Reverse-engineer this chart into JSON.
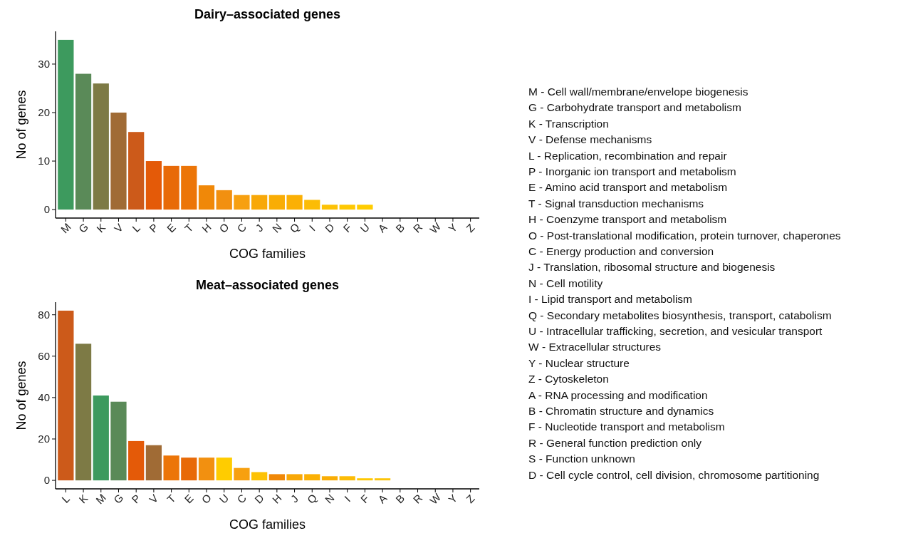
{
  "chart_data": [
    {
      "type": "bar",
      "title": "Dairy–associated genes",
      "xlabel": "COG families",
      "ylabel": "No of genes",
      "categories": [
        "M",
        "G",
        "K",
        "V",
        "L",
        "P",
        "E",
        "T",
        "H",
        "O",
        "C",
        "J",
        "N",
        "Q",
        "I",
        "D",
        "F",
        "U",
        "A",
        "B",
        "R",
        "W",
        "Y",
        "Z"
      ],
      "values": [
        35,
        28,
        26,
        20,
        16,
        10,
        9,
        9,
        5,
        4,
        3,
        3,
        3,
        3,
        2,
        1,
        1,
        1,
        0,
        0,
        0,
        0,
        0,
        0
      ],
      "colors": [
        "#3d9a5e",
        "#5a8a58",
        "#7d7a45",
        "#a06b35",
        "#cc5a1a",
        "#e45a08",
        "#e86a08",
        "#ec7508",
        "#f08808",
        "#f29010",
        "#f7a010",
        "#f8a808",
        "#f9ad05",
        "#fbb005",
        "#fcbc06",
        "#fdc205",
        "#fec803",
        "#ffcc00",
        "#fff5d0",
        "#fff5d0",
        "#fff5d0",
        "#fff5d0",
        "#fff5d0",
        "#fff5d0"
      ],
      "ylim": [
        -1.75,
        36.75
      ],
      "yticks": [
        0,
        10,
        20,
        30
      ]
    },
    {
      "type": "bar",
      "title": "Meat–associated genes",
      "xlabel": "COG families",
      "ylabel": "No of genes",
      "categories": [
        "L",
        "K",
        "M",
        "G",
        "P",
        "V",
        "T",
        "E",
        "O",
        "U",
        "C",
        "D",
        "H",
        "J",
        "Q",
        "N",
        "I",
        "F",
        "A",
        "B",
        "R",
        "W",
        "Y",
        "Z"
      ],
      "values": [
        82,
        66,
        41,
        38,
        19,
        17,
        12,
        11,
        11,
        11,
        6,
        4,
        3,
        3,
        3,
        2,
        2,
        1,
        1,
        0,
        0,
        0,
        0,
        0
      ],
      "colors": [
        "#cc5a1a",
        "#7d7a45",
        "#3d9a5e",
        "#5a8a58",
        "#e45a08",
        "#a06b35",
        "#ec7508",
        "#e86a08",
        "#f29010",
        "#ffcc00",
        "#f7a010",
        "#fdc205",
        "#f08808",
        "#f8a808",
        "#fbb005",
        "#f9ad05",
        "#fcbc06",
        "#fec803",
        "#fcc40a",
        "#fff5d0",
        "#fff5d0",
        "#fff5d0",
        "#fff5d0",
        "#fff5d0"
      ],
      "ylim": [
        -4.1,
        86.1
      ],
      "yticks": [
        0,
        20,
        40,
        60,
        80
      ]
    },
    {
      "type": "other",
      "annotations": [
        "M - Cell wall/membrane/envelope biogenesis",
        "G - Carbohydrate transport and metabolism",
        "K - Transcription",
        "V - Defense mechanisms",
        "L - Replication, recombination and repair",
        "P - Inorganic ion transport and metabolism",
        "E - Amino acid transport and metabolism",
        "T - Signal transduction mechanisms",
        "H - Coenzyme transport and metabolism",
        "O - Post-translational modification, protein turnover, chaperones",
        "C - Energy production and conversion",
        "J - Translation, ribosomal structure and biogenesis",
        "N - Cell motility",
        "I - Lipid transport and metabolism",
        "Q - Secondary metabolites biosynthesis, transport, catabolism",
        "U - Intracellular trafficking, secretion, and vesicular transport",
        "W - Extracellular structures",
        "Y - Nuclear structure",
        "Z - Cytoskeleton",
        "A - RNA processing and modification",
        "B - Chromatin structure and dynamics",
        "F - Nucleotide transport and metabolism",
        "R - General function prediction only",
        "S - Function unknown",
        "D - Cell cycle control, cell division, chromosome partitioning"
      ]
    }
  ]
}
